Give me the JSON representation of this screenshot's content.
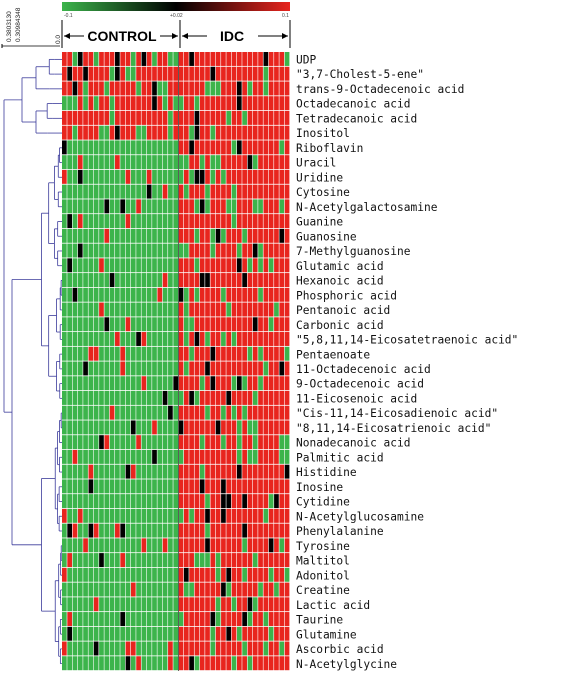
{
  "chart_data": {
    "type": "heatmap",
    "groups": [
      {
        "name": "CONTROL",
        "columns": 22
      },
      {
        "name": "IDC",
        "columns": 21
      }
    ],
    "color_scale": {
      "low": "#3cb44b",
      "mid": "#000000",
      "high": "#e8251e",
      "tick_labels": [
        "-0.1",
        "+0.02",
        "0.1"
      ]
    },
    "dendrogram_scale_labels": [
      "0.3803130",
      "0.30984348",
      "0.0"
    ],
    "rows": [
      "UDP",
      "\"3,7-Cholest-5-ene\"",
      "trans-9-Octadecenoic acid",
      "Octadecanoic acid",
      "Tetradecanoic acid",
      "Inositol",
      "Riboflavin",
      "Uracil",
      "Uridine",
      "Cytosine",
      "N-Acetylgalactosamine",
      "Guanine",
      "Guanosine",
      "7-Methylguanosine",
      "Glutamic acid",
      "Hexanoic acid",
      "Phosphoric acid",
      "Pentanoic acid",
      "Carbonic acid",
      "\"5,8,11,14-Eicosatetraenoic acid\"",
      "Pentaenoate",
      "11-Octadecenoic acid",
      "9-Octadecenoic acid",
      "11-Eicosenoic acid",
      "\"Cis-11,14-Eicosadienoic acid\"",
      "\"8,11,14-Eicosatrienoic acid\"",
      "Nonadecanoic acid",
      "Palmitic acid",
      "Histidine",
      "Inosine",
      "Cytidine",
      "N-Acetylglucosamine",
      "Phenylalanine",
      "Tyrosine",
      "Maltitol",
      "Adonitol",
      "Creatine",
      "Lactic acid",
      "Taurine",
      "Glutamine",
      "Ascorbic acid",
      "N-Acetylglycine"
    ],
    "row_profile_control_vs_idc": [
      "high-mixed",
      "high-mixed",
      "high",
      "high",
      "high",
      "high",
      "low",
      "low",
      "low",
      "low",
      "low",
      "low",
      "low",
      "low",
      "low",
      "low",
      "low",
      "low",
      "low",
      "low",
      "low",
      "low",
      "low",
      "low",
      "low",
      "low",
      "low",
      "low",
      "low",
      "low",
      "low",
      "low",
      "low",
      "low",
      "low",
      "low",
      "low",
      "low",
      "low",
      "low",
      "low",
      "low"
    ]
  }
}
